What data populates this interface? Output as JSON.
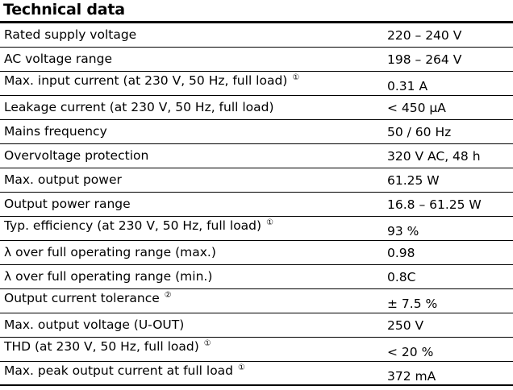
{
  "title": "Technical data",
  "rows": [
    {
      "parameter": "Rated supply voltage",
      "note": "",
      "value": "220 – 240 V"
    },
    {
      "parameter": "AC voltage range",
      "note": "",
      "value": "198 – 264 V"
    },
    {
      "parameter": "Max. input current (at 230 V, 50 Hz, full load)",
      "note": "①",
      "value": "0.31 A"
    },
    {
      "parameter": "Leakage current (at 230 V, 50 Hz, full load)",
      "note": "",
      "value": "< 450 µA"
    },
    {
      "parameter": "Mains frequency",
      "note": "",
      "value": "50 / 60 Hz"
    },
    {
      "parameter": "Overvoltage protection",
      "note": "",
      "value": "320 V AC, 48 h"
    },
    {
      "parameter": "Max. output power",
      "note": "",
      "value": "61.25 W"
    },
    {
      "parameter": "Output power range",
      "note": "",
      "value": "16.8 – 61.25 W"
    },
    {
      "parameter": "Typ. efficiency (at 230 V, 50 Hz, full load)",
      "note": "①",
      "value": "93 %"
    },
    {
      "parameter": "λ over full operating range (max.)",
      "note": "",
      "value": "0.98"
    },
    {
      "parameter": "λ over full operating range (min.)",
      "note": "",
      "value": "0.8C"
    },
    {
      "parameter": "Output current tolerance",
      "note": "②",
      "value": "± 7.5 %"
    },
    {
      "parameter": "Max. output voltage (U-OUT)",
      "note": "",
      "value": "250 V"
    },
    {
      "parameter": "THD (at 230 V, 50 Hz, full load)",
      "note": "①",
      "value": "< 20 %"
    },
    {
      "parameter": "Max. peak output current at full load",
      "note": "①",
      "value": "372 mA"
    }
  ]
}
